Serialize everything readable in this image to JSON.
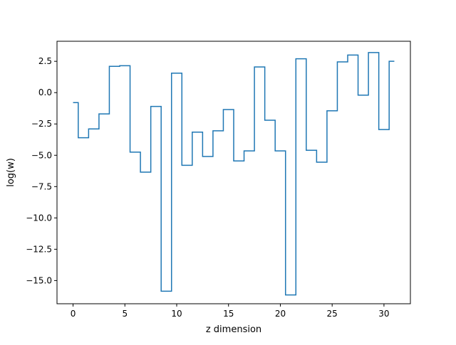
{
  "chart_data": {
    "type": "line",
    "drawstyle": "steps-mid",
    "title": "",
    "xlabel": "z dimension",
    "ylabel": "log(w)",
    "xlim": [
      -1.55,
      32.55
    ],
    "ylim": [
      -16.85,
      4.1
    ],
    "xticks": [
      0,
      5,
      10,
      15,
      20,
      25,
      30
    ],
    "xtick_labels": [
      "0",
      "5",
      "10",
      "15",
      "20",
      "25",
      "30"
    ],
    "yticks": [
      2.5,
      0.0,
      -2.5,
      -5.0,
      -7.5,
      -10.0,
      -12.5,
      -15.0
    ],
    "ytick_labels": [
      "2.5",
      "0.0",
      "−2.5",
      "−5.0",
      "−7.5",
      "−10.0",
      "−12.5",
      "−15.0"
    ],
    "grid": false,
    "legend": "none",
    "series": [
      {
        "color": "#1f77b4",
        "x": [
          0,
          1,
          2,
          3,
          4,
          5,
          6,
          7,
          8,
          9,
          10,
          11,
          12,
          13,
          14,
          15,
          16,
          17,
          18,
          19,
          20,
          21,
          22,
          23,
          24,
          25,
          26,
          27,
          28,
          29,
          30,
          31
        ],
        "y": [
          -0.8,
          -3.6,
          -2.9,
          -1.7,
          2.1,
          2.15,
          -4.75,
          -6.35,
          -1.1,
          -15.85,
          1.55,
          -5.8,
          -3.15,
          -5.1,
          -3.05,
          -1.35,
          -5.45,
          -4.65,
          2.05,
          -2.2,
          -4.65,
          -16.15,
          2.7,
          -4.6,
          -5.55,
          -1.45,
          2.45,
          3.0,
          -0.2,
          3.2,
          -2.95,
          2.5
        ]
      }
    ]
  }
}
